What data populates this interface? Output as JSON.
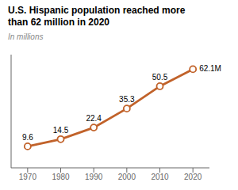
{
  "chart_data": {
    "type": "line",
    "title": "U.S. Hispanic population reached more\nthan 62 million in 2020",
    "subtitle": "In millions",
    "x": [
      1970,
      1980,
      1990,
      2000,
      2010,
      2020
    ],
    "values": [
      9.6,
      14.5,
      22.4,
      35.3,
      50.5,
      62.1
    ],
    "value_labels": [
      "9.6",
      "14.5",
      "22.4",
      "35.3",
      "50.5",
      "62.1M"
    ],
    "data_labels": true,
    "color": "#c1622a",
    "marker": "circle",
    "xlim": [
      1965,
      2025
    ],
    "xticks": [
      1970,
      1980,
      1990,
      2000,
      2010,
      2020
    ],
    "ylim": [
      -5,
      72
    ],
    "tick_labels": "x",
    "grid": false
  }
}
